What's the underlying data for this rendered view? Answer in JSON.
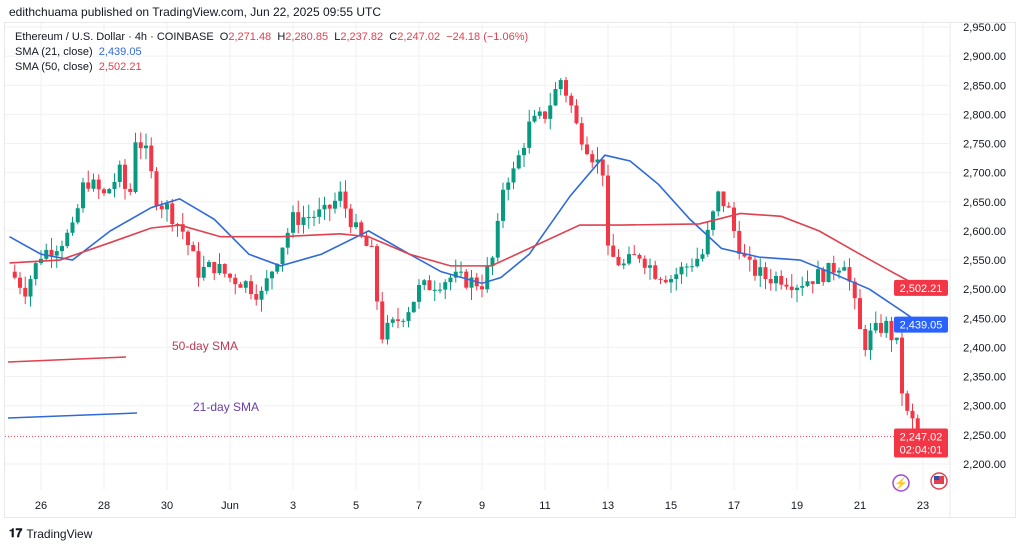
{
  "publisher": "edithchuama published on TradingView.com, Jun 22, 2025 09:55 UTC",
  "legend": {
    "symbol": "Ethereum / U.S. Dollar · 4h · COINBASE",
    "o_label": "O",
    "o": "2,271.48",
    "h_label": "H",
    "h": "2,280.85",
    "l_label": "L",
    "l": "2,237.82",
    "c_label": "C",
    "c": "2,247.02",
    "change": "−24.18 (−1.06%)",
    "sma21_label": "SMA (21, close)",
    "sma21": "2,439.05",
    "sma50_label": "SMA (50, close)",
    "sma50": "2,502.21"
  },
  "brand": "TradingView",
  "colors": {
    "up": "#089981",
    "down": "#f23645",
    "sma21": "#2f6ad9",
    "sma50": "#e0404f"
  },
  "chart_data": {
    "type": "candlestick",
    "x_unit": "days since May 25, 2025",
    "ylim": [
      2175,
      2960
    ],
    "y_ticks": [
      2200,
      2250,
      2300,
      2350,
      2400,
      2450,
      2500,
      2550,
      2600,
      2650,
      2700,
      2750,
      2800,
      2850,
      2900,
      2950
    ],
    "y_tick_labels": [
      "2,200.00",
      "2,250.00",
      "2,300.00",
      "2,350.00",
      "2,400.00",
      "2,450.00",
      "2,500.00",
      "2,550.00",
      "2,600.00",
      "2,650.00",
      "2,700.00",
      "2,750.00",
      "2,800.00",
      "2,850.00",
      "2,900.00",
      "2,950.00"
    ],
    "x_ticks": [
      1,
      3,
      5,
      7,
      9,
      11,
      13,
      15,
      17,
      19,
      21,
      23,
      25,
      27,
      29
    ],
    "x_tick_labels": [
      "26",
      "28",
      "30",
      "Jun",
      "3",
      "5",
      "7",
      "9",
      "11",
      "13",
      "15",
      "17",
      "19",
      "21",
      "23"
    ],
    "price_path": [
      [
        0,
        2530
      ],
      [
        0.5,
        2500
      ],
      [
        1,
        2560
      ],
      [
        1.6,
        2580
      ],
      [
        2,
        2600
      ],
      [
        2.4,
        2690
      ],
      [
        3,
        2660
      ],
      [
        3.5,
        2700
      ],
      [
        3.8,
        2650
      ],
      [
        4,
        2760
      ],
      [
        4.3,
        2740
      ],
      [
        4.7,
        2650
      ],
      [
        5,
        2640
      ],
      [
        5.5,
        2600
      ],
      [
        6,
        2530
      ],
      [
        6.5,
        2540
      ],
      [
        7,
        2520
      ],
      [
        7.5,
        2510
      ],
      [
        8,
        2490
      ],
      [
        8.3,
        2530
      ],
      [
        9,
        2620
      ],
      [
        9.5,
        2625
      ],
      [
        10,
        2630
      ],
      [
        10.5,
        2660
      ],
      [
        11,
        2600
      ],
      [
        11.5,
        2560
      ],
      [
        11.8,
        2420
      ],
      [
        12.2,
        2440
      ],
      [
        12.7,
        2470
      ],
      [
        13,
        2500
      ],
      [
        13.5,
        2510
      ],
      [
        14,
        2520
      ],
      [
        14.5,
        2515
      ],
      [
        15,
        2510
      ],
      [
        15.4,
        2560
      ],
      [
        15.7,
        2690
      ],
      [
        16,
        2700
      ],
      [
        16.5,
        2780
      ],
      [
        17,
        2800
      ],
      [
        17.5,
        2860
      ],
      [
        17.8,
        2820
      ],
      [
        18,
        2780
      ],
      [
        18.5,
        2730
      ],
      [
        18.9,
        2700
      ],
      [
        19,
        2560
      ],
      [
        19.5,
        2540
      ],
      [
        20,
        2560
      ],
      [
        20.5,
        2530
      ],
      [
        21,
        2520
      ],
      [
        21.5,
        2540
      ],
      [
        22,
        2560
      ],
      [
        22.5,
        2660
      ],
      [
        22.8,
        2640
      ],
      [
        23,
        2600
      ],
      [
        23.4,
        2540
      ],
      [
        24,
        2520
      ],
      [
        24.5,
        2520
      ],
      [
        25,
        2510
      ],
      [
        25.5,
        2520
      ],
      [
        26,
        2530
      ],
      [
        26.5,
        2550
      ],
      [
        26.8,
        2480
      ],
      [
        27.1,
        2400
      ],
      [
        27.3,
        2420
      ],
      [
        27.8,
        2440
      ],
      [
        28.2,
        2400
      ],
      [
        28.4,
        2290
      ],
      [
        28.7,
        2270
      ],
      [
        28.95,
        2247
      ]
    ],
    "series": [
      {
        "name": "SMA (21, close)",
        "values": [
          [
            0,
            2590
          ],
          [
            1,
            2560
          ],
          [
            2,
            2550
          ],
          [
            3.2,
            2600
          ],
          [
            4.5,
            2640
          ],
          [
            5.4,
            2655
          ],
          [
            6.5,
            2620
          ],
          [
            7.6,
            2560
          ],
          [
            8.6,
            2540
          ],
          [
            9.9,
            2560
          ],
          [
            11.4,
            2600
          ],
          [
            12.7,
            2560
          ],
          [
            13.7,
            2530
          ],
          [
            15,
            2510
          ],
          [
            15.6,
            2520
          ],
          [
            16.5,
            2560
          ],
          [
            17.8,
            2660
          ],
          [
            18.9,
            2730
          ],
          [
            19.7,
            2720
          ],
          [
            20.6,
            2680
          ],
          [
            21.6,
            2620
          ],
          [
            22.6,
            2570
          ],
          [
            23.8,
            2555
          ],
          [
            25.1,
            2550
          ],
          [
            26,
            2530
          ],
          [
            27.3,
            2500
          ],
          [
            28.4,
            2460
          ],
          [
            28.95,
            2439.05
          ]
        ]
      },
      {
        "name": "SMA (50, close)",
        "values": [
          [
            0,
            2545
          ],
          [
            1.6,
            2550
          ],
          [
            3.2,
            2580
          ],
          [
            4.5,
            2605
          ],
          [
            5.4,
            2610
          ],
          [
            6.7,
            2590
          ],
          [
            8.6,
            2590
          ],
          [
            10.5,
            2595
          ],
          [
            11.4,
            2590
          ],
          [
            12.7,
            2560
          ],
          [
            14,
            2540
          ],
          [
            15.3,
            2540
          ],
          [
            16.5,
            2570
          ],
          [
            18.1,
            2610
          ],
          [
            19.4,
            2610
          ],
          [
            21.9,
            2612
          ],
          [
            23.2,
            2630
          ],
          [
            24.5,
            2625
          ],
          [
            25.7,
            2600
          ],
          [
            27,
            2560
          ],
          [
            28,
            2530
          ],
          [
            28.95,
            2502.21
          ]
        ]
      }
    ],
    "annotations": [
      {
        "text": "50-day SMA"
      },
      {
        "text": "21-day SMA"
      }
    ],
    "last_price_label": "2,247.02",
    "countdown": "02:04:01",
    "sma50_axis_label": "2,502.21",
    "sma21_axis_label": "2,439.05"
  }
}
